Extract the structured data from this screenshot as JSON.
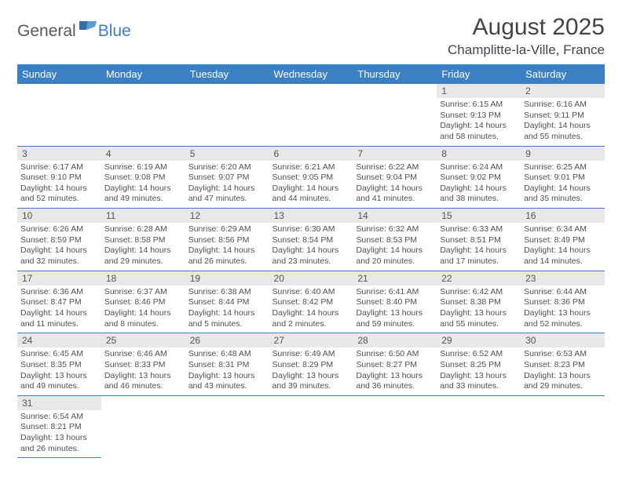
{
  "logo": {
    "general": "General",
    "blue": "Blue"
  },
  "title": "August 2025",
  "location": "Champlitte-la-Ville, France",
  "colors": {
    "header_bg": "#3b7fc4",
    "header_text": "#ffffff",
    "daynum_bg": "#e8e8e8",
    "border": "#3b7fc4",
    "body_text": "#505050"
  },
  "weekdays": [
    "Sunday",
    "Monday",
    "Tuesday",
    "Wednesday",
    "Thursday",
    "Friday",
    "Saturday"
  ],
  "weeks": [
    [
      null,
      null,
      null,
      null,
      null,
      {
        "n": "1",
        "sr": "6:15 AM",
        "ss": "9:13 PM",
        "dl": "14 hours and 58 minutes."
      },
      {
        "n": "2",
        "sr": "6:16 AM",
        "ss": "9:11 PM",
        "dl": "14 hours and 55 minutes."
      }
    ],
    [
      {
        "n": "3",
        "sr": "6:17 AM",
        "ss": "9:10 PM",
        "dl": "14 hours and 52 minutes."
      },
      {
        "n": "4",
        "sr": "6:19 AM",
        "ss": "9:08 PM",
        "dl": "14 hours and 49 minutes."
      },
      {
        "n": "5",
        "sr": "6:20 AM",
        "ss": "9:07 PM",
        "dl": "14 hours and 47 minutes."
      },
      {
        "n": "6",
        "sr": "6:21 AM",
        "ss": "9:05 PM",
        "dl": "14 hours and 44 minutes."
      },
      {
        "n": "7",
        "sr": "6:22 AM",
        "ss": "9:04 PM",
        "dl": "14 hours and 41 minutes."
      },
      {
        "n": "8",
        "sr": "6:24 AM",
        "ss": "9:02 PM",
        "dl": "14 hours and 38 minutes."
      },
      {
        "n": "9",
        "sr": "6:25 AM",
        "ss": "9:01 PM",
        "dl": "14 hours and 35 minutes."
      }
    ],
    [
      {
        "n": "10",
        "sr": "6:26 AM",
        "ss": "8:59 PM",
        "dl": "14 hours and 32 minutes."
      },
      {
        "n": "11",
        "sr": "6:28 AM",
        "ss": "8:58 PM",
        "dl": "14 hours and 29 minutes."
      },
      {
        "n": "12",
        "sr": "6:29 AM",
        "ss": "8:56 PM",
        "dl": "14 hours and 26 minutes."
      },
      {
        "n": "13",
        "sr": "6:30 AM",
        "ss": "8:54 PM",
        "dl": "14 hours and 23 minutes."
      },
      {
        "n": "14",
        "sr": "6:32 AM",
        "ss": "8:53 PM",
        "dl": "14 hours and 20 minutes."
      },
      {
        "n": "15",
        "sr": "6:33 AM",
        "ss": "8:51 PM",
        "dl": "14 hours and 17 minutes."
      },
      {
        "n": "16",
        "sr": "6:34 AM",
        "ss": "8:49 PM",
        "dl": "14 hours and 14 minutes."
      }
    ],
    [
      {
        "n": "17",
        "sr": "6:36 AM",
        "ss": "8:47 PM",
        "dl": "14 hours and 11 minutes."
      },
      {
        "n": "18",
        "sr": "6:37 AM",
        "ss": "8:46 PM",
        "dl": "14 hours and 8 minutes."
      },
      {
        "n": "19",
        "sr": "6:38 AM",
        "ss": "8:44 PM",
        "dl": "14 hours and 5 minutes."
      },
      {
        "n": "20",
        "sr": "6:40 AM",
        "ss": "8:42 PM",
        "dl": "14 hours and 2 minutes."
      },
      {
        "n": "21",
        "sr": "6:41 AM",
        "ss": "8:40 PM",
        "dl": "13 hours and 59 minutes."
      },
      {
        "n": "22",
        "sr": "6:42 AM",
        "ss": "8:38 PM",
        "dl": "13 hours and 55 minutes."
      },
      {
        "n": "23",
        "sr": "6:44 AM",
        "ss": "8:36 PM",
        "dl": "13 hours and 52 minutes."
      }
    ],
    [
      {
        "n": "24",
        "sr": "6:45 AM",
        "ss": "8:35 PM",
        "dl": "13 hours and 49 minutes."
      },
      {
        "n": "25",
        "sr": "6:46 AM",
        "ss": "8:33 PM",
        "dl": "13 hours and 46 minutes."
      },
      {
        "n": "26",
        "sr": "6:48 AM",
        "ss": "8:31 PM",
        "dl": "13 hours and 43 minutes."
      },
      {
        "n": "27",
        "sr": "6:49 AM",
        "ss": "8:29 PM",
        "dl": "13 hours and 39 minutes."
      },
      {
        "n": "28",
        "sr": "6:50 AM",
        "ss": "8:27 PM",
        "dl": "13 hours and 36 minutes."
      },
      {
        "n": "29",
        "sr": "6:52 AM",
        "ss": "8:25 PM",
        "dl": "13 hours and 33 minutes."
      },
      {
        "n": "30",
        "sr": "6:53 AM",
        "ss": "8:23 PM",
        "dl": "13 hours and 29 minutes."
      }
    ],
    [
      {
        "n": "31",
        "sr": "6:54 AM",
        "ss": "8:21 PM",
        "dl": "13 hours and 26 minutes."
      },
      null,
      null,
      null,
      null,
      null,
      null
    ]
  ]
}
